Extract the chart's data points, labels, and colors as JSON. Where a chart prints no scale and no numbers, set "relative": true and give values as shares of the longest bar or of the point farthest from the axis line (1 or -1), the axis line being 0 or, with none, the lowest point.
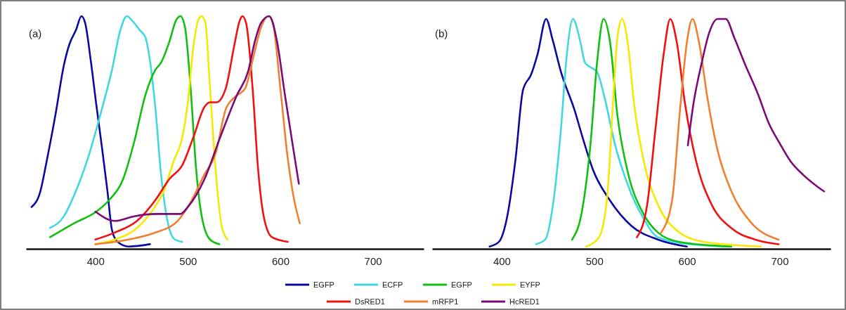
{
  "chart_data": [
    {
      "type": "line",
      "title": "(a)",
      "relative": true,
      "xlim": [
        325,
        755
      ],
      "xticks": [
        400,
        500,
        600,
        700
      ],
      "legend": "bottom",
      "line_style": "solid",
      "marker": "none",
      "series": [
        {
          "name": "EGFP",
          "color": "#0a0aa0",
          "x": [
            331,
            340,
            348,
            357,
            366,
            372,
            379,
            385,
            389,
            395,
            401,
            407,
            413,
            418,
            424,
            436,
            459
          ],
          "values": [
            0.18,
            0.24,
            0.39,
            0.58,
            0.79,
            0.88,
            0.94,
            1.0,
            0.97,
            0.81,
            0.62,
            0.44,
            0.25,
            0.08,
            0.03,
            0.01,
            0.02
          ]
        },
        {
          "name": "ECFP",
          "color": "#40d8e0",
          "x": [
            351,
            366,
            377,
            392,
            407,
            418,
            427,
            434,
            440,
            448,
            454,
            459,
            465,
            471,
            477,
            486,
            494
          ],
          "values": [
            0.09,
            0.14,
            0.23,
            0.39,
            0.6,
            0.77,
            0.94,
            1.0,
            0.98,
            0.94,
            0.91,
            0.81,
            0.6,
            0.32,
            0.14,
            0.04,
            0.03
          ]
        },
        {
          "name": "EGFP",
          "color": "#10c010",
          "x": [
            351,
            377,
            401,
            415,
            430,
            442,
            454,
            465,
            471,
            480,
            487,
            492,
            497,
            503,
            509,
            515,
            524,
            534
          ],
          "values": [
            0.05,
            0.11,
            0.16,
            0.21,
            0.3,
            0.46,
            0.66,
            0.77,
            0.8,
            0.89,
            0.98,
            1.0,
            0.95,
            0.69,
            0.34,
            0.14,
            0.04,
            0.02
          ]
        },
        {
          "name": "EYFP",
          "color": "#f8e800",
          "x": [
            400,
            421,
            442,
            459,
            474,
            485,
            494,
            500,
            506,
            512,
            515,
            519,
            524,
            530,
            537,
            543
          ],
          "values": [
            0.02,
            0.04,
            0.08,
            0.15,
            0.25,
            0.38,
            0.48,
            0.63,
            0.87,
            0.99,
            1.0,
            0.97,
            0.69,
            0.34,
            0.09,
            0.04
          ]
        },
        {
          "name": "DsRED1",
          "color": "#f01010",
          "x": [
            400,
            421,
            445,
            465,
            480,
            494,
            506,
            518,
            524,
            531,
            541,
            550,
            556,
            559,
            563,
            570,
            576,
            582,
            591,
            608
          ],
          "values": [
            0.04,
            0.07,
            0.12,
            0.21,
            0.3,
            0.36,
            0.48,
            0.61,
            0.63,
            0.63,
            0.69,
            0.87,
            0.98,
            1.0,
            0.97,
            0.69,
            0.34,
            0.14,
            0.05,
            0.03
          ]
        },
        {
          "name": "mRFP1",
          "color": "#f08030",
          "x": [
            400,
            436,
            465,
            489,
            500,
            518,
            530,
            541,
            550,
            562,
            570,
            579,
            587,
            592,
            600,
            608,
            614,
            621
          ],
          "values": [
            0.02,
            0.04,
            0.07,
            0.12,
            0.18,
            0.32,
            0.41,
            0.6,
            0.65,
            0.69,
            0.81,
            0.95,
            1.0,
            0.97,
            0.69,
            0.39,
            0.23,
            0.11
          ]
        },
        {
          "name": "HcRED1",
          "color": "#7a0a78",
          "x": [
            400,
            421,
            442,
            465,
            492,
            500,
            518,
            535,
            553,
            565,
            573,
            579,
            588,
            596,
            605,
            614,
            620
          ],
          "values": [
            0.16,
            0.12,
            0.14,
            0.15,
            0.15,
            0.18,
            0.3,
            0.48,
            0.66,
            0.76,
            0.9,
            0.97,
            1.0,
            0.9,
            0.66,
            0.43,
            0.28
          ]
        }
      ]
    },
    {
      "type": "line",
      "title": "(b)",
      "relative": true,
      "xlim": [
        325,
        755
      ],
      "xticks": [
        400,
        500,
        600,
        700
      ],
      "line_style": "solid",
      "marker": "none",
      "series": [
        {
          "color": "#0a0aa0",
          "x": [
            387,
            397,
            406,
            415,
            423,
            432,
            439,
            448,
            455,
            464,
            479,
            487,
            499,
            517,
            540,
            569,
            600
          ],
          "values": [
            0.01,
            0.03,
            0.14,
            0.39,
            0.69,
            0.76,
            0.85,
            1.0,
            0.91,
            0.77,
            0.6,
            0.49,
            0.34,
            0.21,
            0.1,
            0.04,
            0.01
          ]
        },
        {
          "color": "#40d8e0",
          "x": [
            437,
            447,
            455,
            464,
            470,
            477,
            485,
            490,
            496,
            503,
            511,
            522,
            537,
            552,
            569,
            604,
            648
          ],
          "values": [
            0.02,
            0.04,
            0.18,
            0.52,
            0.83,
            1.0,
            0.9,
            0.81,
            0.79,
            0.77,
            0.66,
            0.46,
            0.27,
            0.14,
            0.05,
            0.02,
            0.01
          ]
        },
        {
          "color": "#10c010",
          "x": [
            476,
            487,
            496,
            503,
            510,
            517,
            525,
            537,
            552,
            569,
            592,
            648
          ],
          "values": [
            0.04,
            0.17,
            0.46,
            0.81,
            1.0,
            0.9,
            0.58,
            0.32,
            0.16,
            0.07,
            0.03,
            0.01
          ]
        },
        {
          "color": "#f8e800",
          "x": [
            491,
            505,
            514,
            521,
            525,
            530,
            536,
            543,
            554,
            569,
            589,
            619,
            680
          ],
          "values": [
            0.01,
            0.05,
            0.23,
            0.69,
            0.92,
            1.0,
            0.9,
            0.63,
            0.37,
            0.19,
            0.08,
            0.03,
            0.01
          ]
        },
        {
          "color": "#f01010",
          "x": [
            546,
            557,
            566,
            575,
            582,
            589,
            598,
            610,
            627,
            648,
            674,
            699
          ],
          "values": [
            0.05,
            0.19,
            0.52,
            0.85,
            1.0,
            0.9,
            0.63,
            0.38,
            0.19,
            0.09,
            0.04,
            0.02
          ]
        },
        {
          "color": "#f08030",
          "x": [
            572,
            584,
            592,
            600,
            606,
            613,
            622,
            633,
            648,
            668,
            699
          ],
          "values": [
            0.07,
            0.21,
            0.58,
            0.9,
            1.0,
            0.9,
            0.66,
            0.43,
            0.25,
            0.12,
            0.04
          ]
        },
        {
          "color": "#7a0a78",
          "x": [
            601,
            607,
            616,
            624,
            633,
            642,
            651,
            662,
            677,
            688,
            700,
            712,
            726,
            741,
            748
          ],
          "values": [
            0.45,
            0.63,
            0.81,
            0.94,
            1.0,
            1.0,
            0.92,
            0.81,
            0.67,
            0.55,
            0.46,
            0.38,
            0.32,
            0.27,
            0.25
          ]
        }
      ]
    }
  ]
}
